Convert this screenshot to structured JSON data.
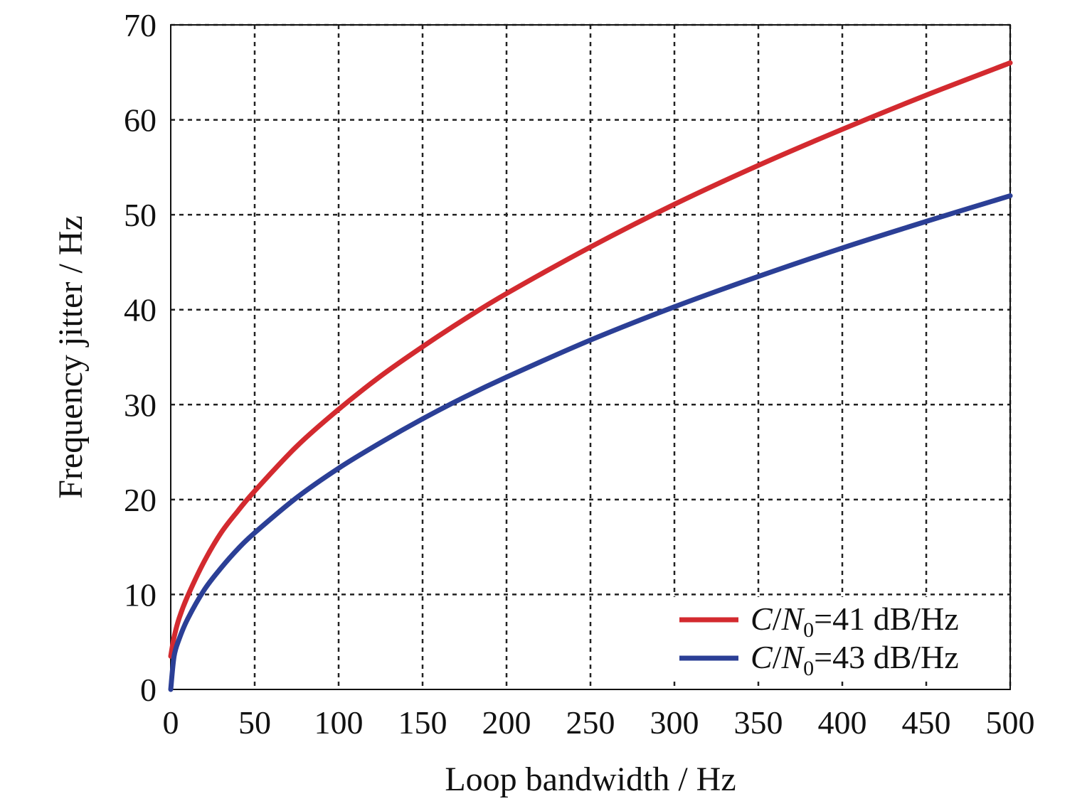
{
  "chart_data": {
    "type": "line",
    "xlabel": "Loop bandwidth / Hz",
    "ylabel": "Frequency jitter / Hz",
    "xlim": [
      0,
      500
    ],
    "ylim": [
      0,
      70
    ],
    "xticks": [
      "0",
      "50",
      "100",
      "150",
      "200",
      "250",
      "300",
      "350",
      "400",
      "450",
      "500"
    ],
    "yticks": [
      "0",
      "10",
      "20",
      "30",
      "40",
      "50",
      "60",
      "70"
    ],
    "grid": true,
    "legend_position": "bottom-right",
    "series": [
      {
        "legend": {
          "C": "C",
          "sep": "/",
          "N": "N",
          "sub": "0",
          "rest": "=41 dB/Hz"
        },
        "color": "#d32a2f",
        "x": [
          0,
          2,
          5,
          10,
          20,
          30,
          40,
          50,
          75,
          100,
          125,
          150,
          175,
          200,
          250,
          300,
          350,
          400,
          450,
          500
        ],
        "y": [
          3.5,
          5.5,
          7.5,
          9.8,
          13.5,
          16.5,
          18.8,
          20.9,
          25.6,
          29.5,
          33.0,
          36.1,
          39.0,
          41.7,
          46.6,
          51.1,
          55.2,
          59.0,
          62.6,
          66.0
        ]
      },
      {
        "legend": {
          "C": "C",
          "sep": "/",
          "N": "N",
          "sub": "0",
          "rest": "=43 dB/Hz"
        },
        "color": "#2b3f96",
        "x": [
          0,
          2,
          5,
          10,
          20,
          30,
          40,
          50,
          75,
          100,
          125,
          150,
          175,
          200,
          250,
          300,
          350,
          400,
          450,
          500
        ],
        "y": [
          0,
          3.5,
          5.3,
          7.4,
          10.5,
          12.8,
          14.8,
          16.5,
          20.2,
          23.3,
          26.0,
          28.5,
          30.8,
          32.9,
          36.8,
          40.3,
          43.5,
          46.5,
          49.3,
          52.0
        ]
      }
    ]
  }
}
